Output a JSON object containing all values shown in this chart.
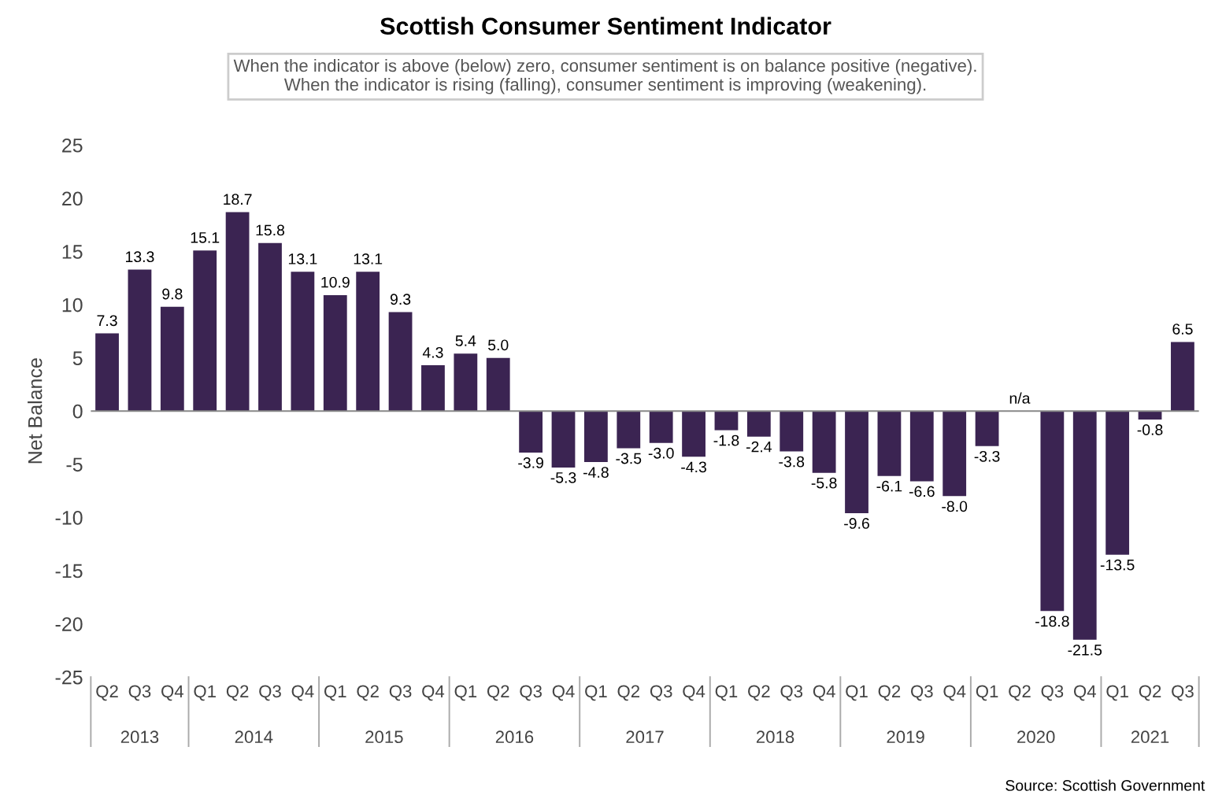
{
  "chart_data": {
    "type": "bar",
    "title": "Scottish Consumer Sentiment Indicator",
    "subtitle": "When the indicator is above (below) zero, consumer sentiment is on balance positive (negative).\nWhen the indicator is rising (falling), consumer sentiment is improving (weakening).",
    "ylabel": "Net Balance",
    "categories": [
      "Q2",
      "Q3",
      "Q4",
      "Q1",
      "Q2",
      "Q3",
      "Q4",
      "Q1",
      "Q2",
      "Q3",
      "Q4",
      "Q1",
      "Q2",
      "Q3",
      "Q4",
      "Q1",
      "Q2",
      "Q3",
      "Q4",
      "Q1",
      "Q2",
      "Q3",
      "Q4",
      "Q1",
      "Q2",
      "Q3",
      "Q4",
      "Q1",
      "Q2",
      "Q3",
      "Q4",
      "Q1",
      "Q2",
      "Q3"
    ],
    "values": [
      7.3,
      13.3,
      9.8,
      15.1,
      18.7,
      15.8,
      13.1,
      10.9,
      13.1,
      9.3,
      4.3,
      5.4,
      5.0,
      -3.9,
      -5.3,
      -4.8,
      -3.5,
      -3.0,
      -4.3,
      -1.8,
      -2.4,
      -3.8,
      -5.8,
      -9.6,
      -6.1,
      -6.6,
      -8.0,
      -3.3,
      null,
      -18.8,
      -21.5,
      -13.5,
      -0.8,
      6.5
    ],
    "value_labels": [
      "7.3",
      "13.3",
      "9.8",
      "15.1",
      "18.7",
      "15.8",
      "13.1",
      "10.9",
      "13.1",
      "9.3",
      "4.3",
      "5.4",
      "5.0",
      "-3.9",
      "-5.3",
      "-4.8",
      "-3.5",
      "-3.0",
      "-4.3",
      "-1.8",
      "-2.4",
      "-3.8",
      "-5.8",
      "-9.6",
      "-6.1",
      "-6.6",
      "-8.0",
      "-3.3",
      "n/a",
      "-18.8",
      "-21.5",
      "-13.5",
      "-0.8",
      "6.5"
    ],
    "color": "#3b2452",
    "ylim": [
      -25,
      25
    ],
    "yticks": [
      -25,
      -20,
      -15,
      -10,
      -5,
      0,
      5,
      10,
      15,
      20,
      25
    ],
    "annotations": [
      "2013",
      "2014",
      "2015",
      "2016",
      "2017",
      "2018",
      "2019",
      "2020",
      "2021",
      "Source: Scottish Government"
    ],
    "legend": false
  }
}
